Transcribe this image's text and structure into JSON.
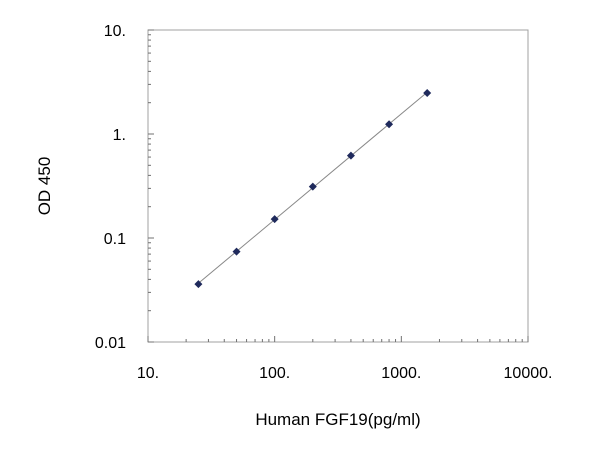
{
  "chart_data": {
    "type": "scatter",
    "title": "",
    "xlabel": "Human FGF19(pg/ml)",
    "ylabel": "OD 450",
    "x_scale": "log",
    "y_scale": "log",
    "xlim": [
      10,
      10000
    ],
    "ylim": [
      0.01,
      10
    ],
    "x_ticks": [
      {
        "value": 10,
        "label": "10."
      },
      {
        "value": 100,
        "label": "100."
      },
      {
        "value": 1000,
        "label": "1000."
      },
      {
        "value": 10000,
        "label": "10000."
      }
    ],
    "y_ticks": [
      {
        "value": 0.01,
        "label": "0.01"
      },
      {
        "value": 0.1,
        "label": "0.1"
      },
      {
        "value": 1,
        "label": "1."
      },
      {
        "value": 10,
        "label": "10."
      }
    ],
    "grid": false,
    "legend": "none",
    "series": [
      {
        "x": [
          25,
          50,
          100,
          200,
          400,
          800,
          1600
        ],
        "y": [
          0.036,
          0.074,
          0.152,
          0.312,
          0.62,
          1.24,
          2.48
        ],
        "marker": "diamond",
        "marker_color": "#1f2a5c",
        "trendline": true,
        "trendline_color": "#888888"
      }
    ]
  }
}
